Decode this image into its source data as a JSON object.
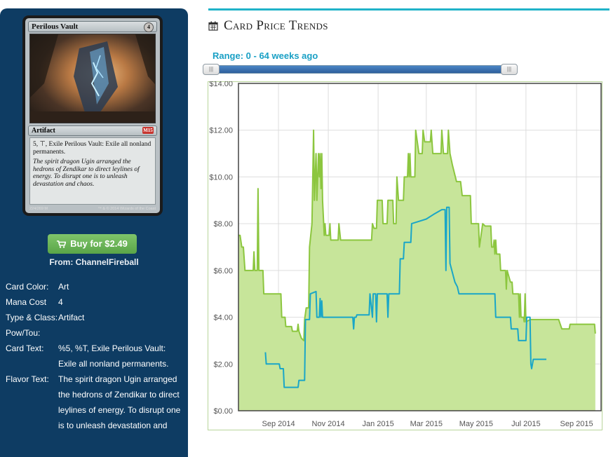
{
  "card": {
    "name": "Perilous Vault",
    "mana_symbol": "4",
    "type_line": "Artifact",
    "set_symbol": "M15",
    "rules_text": "5, ⊤, Exile Perilous Vault: Exile all nonland permanents.",
    "flavor_text": "The spirit dragon Ugin arranged the hedrons of Zendikar to direct leylines of energy. To disrupt one is to unleash devastation and chaos.",
    "collector_number": "224/269 M",
    "copyright": "™ & © 2014 Wizards of the Coast"
  },
  "buy": {
    "label": "Buy for $2.49",
    "from": "From: ChannelFireball"
  },
  "details": [
    {
      "label": "Card Color:",
      "value": "Art"
    },
    {
      "label": "Mana Cost",
      "value": "4"
    },
    {
      "label": "Type & Class:",
      "value": "Artifact"
    },
    {
      "label": "Pow/Tou:",
      "value": ""
    },
    {
      "label": "Card Text:",
      "value": "%5, %T, Exile Perilous Vault: Exile all nonland permanents."
    },
    {
      "label": "Flavor Text:",
      "value": "The spirit dragon Ugin arranged the hedrons of Zendikar to direct leylines of energy. To disrupt one is to unleash devastation and"
    }
  ],
  "page": {
    "title": "Card Price Trends",
    "range_label": "Range: 0 - 64 weeks ago"
  },
  "colors": {
    "accent": "#20b3c8",
    "green_series": "#8cc63f",
    "green_fill": "#c7e59a",
    "blue_series": "#1aa6c7",
    "buy_button": "#6cb858",
    "panel": "#0e3c63"
  },
  "chart_data": {
    "type": "area",
    "ylim": [
      0,
      14
    ],
    "y_ticks": [
      0,
      2,
      4,
      6,
      8,
      10,
      12,
      14
    ],
    "y_tick_labels": [
      "$0.00",
      "$2.00",
      "$4.00",
      "$6.00",
      "$8.00",
      "$10.00",
      "$12.00",
      "$14.00"
    ],
    "xlim": [
      "2014-07-14",
      "2015-10-01"
    ],
    "x_ticks": [
      "2014-09-01",
      "2014-11-01",
      "2015-01-01",
      "2015-03-01",
      "2015-05-01",
      "2015-07-01",
      "2015-09-01"
    ],
    "x_tick_labels": [
      "Sep 2014",
      "Nov 2014",
      "Jan 2015",
      "Mar 2015",
      "May 2015",
      "Jul 2015",
      "Sep 2015"
    ],
    "grid": true,
    "series": [
      {
        "color": "#8cc63f",
        "filled": true,
        "points": [
          [
            "2014-07-14",
            7.5
          ],
          [
            "2014-07-16",
            7.5
          ],
          [
            "2014-07-18",
            7.0
          ],
          [
            "2014-07-20",
            7.0
          ],
          [
            "2014-07-22",
            6.0
          ],
          [
            "2014-08-01",
            6.0
          ],
          [
            "2014-08-02",
            6.8
          ],
          [
            "2014-08-03",
            6.0
          ],
          [
            "2014-08-06",
            6.0
          ],
          [
            "2014-08-07",
            9.5
          ],
          [
            "2014-08-08",
            6.0
          ],
          [
            "2014-08-13",
            6.0
          ],
          [
            "2014-08-14",
            5.0
          ],
          [
            "2014-09-04",
            5.0
          ],
          [
            "2014-09-05",
            4.0
          ],
          [
            "2014-09-09",
            4.0
          ],
          [
            "2014-09-10",
            3.6
          ],
          [
            "2014-09-17",
            3.6
          ],
          [
            "2014-09-18",
            3.4
          ],
          [
            "2014-09-24",
            3.4
          ],
          [
            "2014-09-25",
            3.7
          ],
          [
            "2014-09-26",
            3.4
          ],
          [
            "2014-09-29",
            3.1
          ],
          [
            "2014-10-02",
            3.0
          ],
          [
            "2014-10-03",
            3.9
          ],
          [
            "2014-10-05",
            4.4
          ],
          [
            "2014-10-08",
            4.4
          ],
          [
            "2014-10-09",
            7.0
          ],
          [
            "2014-10-12",
            8.0
          ],
          [
            "2014-10-14",
            12.0
          ],
          [
            "2014-10-15",
            9.0
          ],
          [
            "2014-10-17",
            11.0
          ],
          [
            "2014-10-18",
            9.0
          ],
          [
            "2014-10-20",
            11.0
          ],
          [
            "2014-10-21",
            10.0
          ],
          [
            "2014-10-22",
            11.0
          ],
          [
            "2014-10-23",
            9.5
          ],
          [
            "2014-10-24",
            11.0
          ],
          [
            "2014-10-25",
            9.0
          ],
          [
            "2014-10-27",
            7.5
          ],
          [
            "2014-10-28",
            8.0
          ],
          [
            "2014-10-29",
            7.5
          ],
          [
            "2014-11-02",
            7.5
          ],
          [
            "2014-11-03",
            8.0
          ],
          [
            "2014-11-04",
            7.3
          ],
          [
            "2014-11-13",
            7.3
          ],
          [
            "2014-11-14",
            8.0
          ],
          [
            "2014-11-16",
            7.3
          ],
          [
            "2014-12-24",
            7.3
          ],
          [
            "2014-12-25",
            8.0
          ],
          [
            "2014-12-27",
            7.8
          ],
          [
            "2014-12-30",
            7.8
          ],
          [
            "2014-12-31",
            9.0
          ],
          [
            "2015-01-06",
            9.0
          ],
          [
            "2015-01-07",
            8.0
          ],
          [
            "2015-01-12",
            8.0
          ],
          [
            "2015-01-13",
            9.0
          ],
          [
            "2015-01-19",
            9.0
          ],
          [
            "2015-01-20",
            8.0
          ],
          [
            "2015-01-23",
            8.0
          ],
          [
            "2015-01-24",
            10.0
          ],
          [
            "2015-01-26",
            9.0
          ],
          [
            "2015-02-01",
            9.0
          ],
          [
            "2015-02-02",
            10.0
          ],
          [
            "2015-02-06",
            10.0
          ],
          [
            "2015-02-07",
            11.0
          ],
          [
            "2015-02-08",
            10.0
          ],
          [
            "2015-02-09",
            11.0
          ],
          [
            "2015-02-10",
            10.0
          ],
          [
            "2015-02-15",
            10.0
          ],
          [
            "2015-02-16",
            12.0
          ],
          [
            "2015-02-20",
            11.0
          ],
          [
            "2015-02-24",
            11.0
          ],
          [
            "2015-02-25",
            12.0
          ],
          [
            "2015-02-27",
            11.5
          ],
          [
            "2015-03-06",
            11.5
          ],
          [
            "2015-03-07",
            12.0
          ],
          [
            "2015-03-09",
            11.0
          ],
          [
            "2015-03-19",
            11.0
          ],
          [
            "2015-03-20",
            12.0
          ],
          [
            "2015-03-22",
            11.0
          ],
          [
            "2015-03-27",
            11.0
          ],
          [
            "2015-03-28",
            12.0
          ],
          [
            "2015-03-30",
            11.0
          ],
          [
            "2015-04-02",
            10.5
          ],
          [
            "2015-04-07",
            9.8
          ],
          [
            "2015-04-12",
            9.8
          ],
          [
            "2015-04-14",
            9.2
          ],
          [
            "2015-04-24",
            9.2
          ],
          [
            "2015-04-25",
            8.0
          ],
          [
            "2015-05-04",
            8.0
          ],
          [
            "2015-05-05",
            7.0
          ],
          [
            "2015-05-09",
            8.0
          ],
          [
            "2015-05-12",
            7.9
          ],
          [
            "2015-05-19",
            7.9
          ],
          [
            "2015-05-20",
            7.0
          ],
          [
            "2015-05-22",
            7.0
          ],
          [
            "2015-05-23",
            7.3
          ],
          [
            "2015-05-24",
            6.7
          ],
          [
            "2015-05-25",
            7.3
          ],
          [
            "2015-05-26",
            6.7
          ],
          [
            "2015-05-30",
            6.7
          ],
          [
            "2015-05-31",
            6.0
          ],
          [
            "2015-06-06",
            6.0
          ],
          [
            "2015-06-07",
            5.2
          ],
          [
            "2015-06-08",
            6.0
          ],
          [
            "2015-06-12",
            5.5
          ],
          [
            "2015-06-14",
            5.5
          ],
          [
            "2015-06-15",
            5.0
          ],
          [
            "2015-06-22",
            5.0
          ],
          [
            "2015-06-23",
            4.0
          ],
          [
            "2015-06-24",
            5.0
          ],
          [
            "2015-06-25",
            4.0
          ],
          [
            "2015-06-28",
            4.0
          ],
          [
            "2015-06-29",
            3.8
          ],
          [
            "2015-06-30",
            5.0
          ],
          [
            "2015-07-01",
            3.8
          ],
          [
            "2015-07-06",
            3.9
          ],
          [
            "2015-08-09",
            3.9
          ],
          [
            "2015-08-10",
            3.9
          ],
          [
            "2015-08-14",
            3.5
          ],
          [
            "2015-08-23",
            3.5
          ],
          [
            "2015-08-24",
            3.7
          ],
          [
            "2015-09-23",
            3.7
          ],
          [
            "2015-09-24",
            3.3
          ]
        ]
      },
      {
        "color": "#1aa6c7",
        "filled": false,
        "points": [
          [
            "2014-08-16",
            2.5
          ],
          [
            "2014-08-17",
            2.0
          ],
          [
            "2014-09-02",
            2.0
          ],
          [
            "2014-09-03",
            1.8
          ],
          [
            "2014-09-07",
            1.8
          ],
          [
            "2014-09-08",
            1.0
          ],
          [
            "2014-09-25",
            1.0
          ],
          [
            "2014-09-26",
            1.3
          ],
          [
            "2014-10-03",
            1.3
          ],
          [
            "2014-10-04",
            3.9
          ],
          [
            "2014-10-09",
            3.9
          ],
          [
            "2014-10-10",
            5.0
          ],
          [
            "2014-10-17",
            5.1
          ],
          [
            "2014-10-18",
            4.0
          ],
          [
            "2014-10-21",
            4.0
          ],
          [
            "2014-10-22",
            4.8
          ],
          [
            "2014-10-23",
            4.0
          ],
          [
            "2014-10-24",
            4.7
          ],
          [
            "2014-10-25",
            4.0
          ],
          [
            "2014-12-01",
            4.0
          ],
          [
            "2014-12-02",
            3.5
          ],
          [
            "2014-12-03",
            4.0
          ],
          [
            "2014-12-05",
            4.0
          ],
          [
            "2014-12-06",
            4.1
          ],
          [
            "2014-12-21",
            4.1
          ],
          [
            "2014-12-22",
            5.0
          ],
          [
            "2014-12-25",
            4.0
          ],
          [
            "2014-12-26",
            5.0
          ],
          [
            "2014-12-29",
            5.0
          ],
          [
            "2014-12-30",
            3.8
          ],
          [
            "2014-12-31",
            5.0
          ],
          [
            "2015-01-12",
            5.0
          ],
          [
            "2015-01-13",
            4.0
          ],
          [
            "2015-01-14",
            5.0
          ],
          [
            "2015-01-27",
            5.0
          ],
          [
            "2015-01-28",
            6.5
          ],
          [
            "2015-02-01",
            6.5
          ],
          [
            "2015-02-02",
            7.2
          ],
          [
            "2015-02-10",
            7.2
          ],
          [
            "2015-02-11",
            8.0
          ],
          [
            "2015-02-20",
            8.1
          ],
          [
            "2015-03-01",
            8.2
          ],
          [
            "2015-03-10",
            8.4
          ],
          [
            "2015-03-20",
            8.6
          ],
          [
            "2015-03-24",
            8.6
          ],
          [
            "2015-03-25",
            6.0
          ],
          [
            "2015-03-26",
            8.7
          ],
          [
            "2015-03-29",
            8.7
          ],
          [
            "2015-03-30",
            6.3
          ],
          [
            "2015-04-05",
            5.5
          ],
          [
            "2015-04-08",
            5.3
          ],
          [
            "2015-04-10",
            5.0
          ],
          [
            "2015-05-24",
            5.0
          ],
          [
            "2015-05-25",
            4.0
          ],
          [
            "2015-06-12",
            4.0
          ],
          [
            "2015-06-13",
            3.5
          ],
          [
            "2015-06-21",
            3.5
          ],
          [
            "2015-06-22",
            3.0
          ],
          [
            "2015-07-01",
            3.0
          ],
          [
            "2015-07-02",
            4.0
          ],
          [
            "2015-07-06",
            4.0
          ],
          [
            "2015-07-07",
            2.0
          ],
          [
            "2015-07-08",
            1.8
          ],
          [
            "2015-07-10",
            2.2
          ],
          [
            "2015-07-26",
            2.2
          ]
        ]
      }
    ]
  }
}
